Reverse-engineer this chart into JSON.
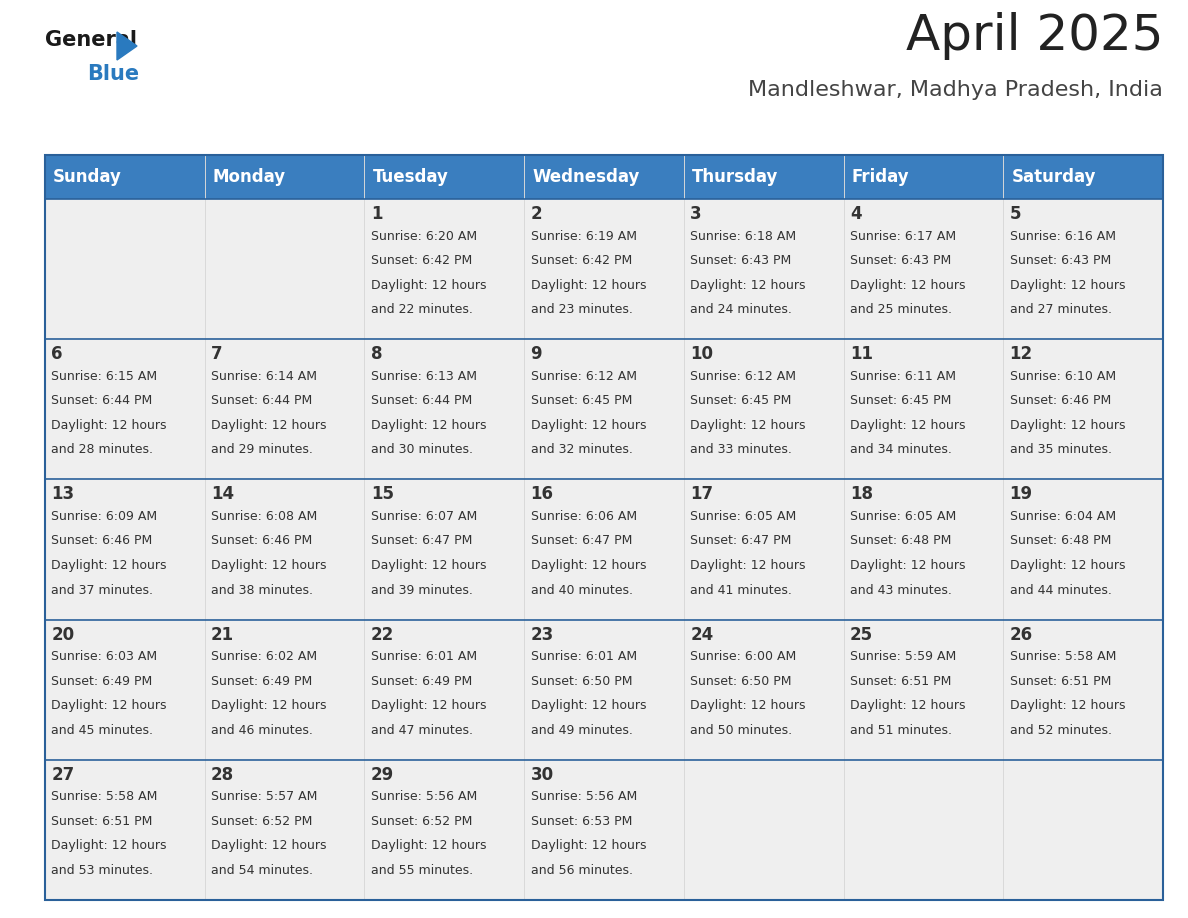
{
  "title": "April 2025",
  "subtitle": "Mandleshwar, Madhya Pradesh, India",
  "header_bg": "#3a7ebf",
  "header_text_color": "#ffffff",
  "cell_bg_light": "#efefef",
  "text_color": "#333333",
  "border_color": "#2a6099",
  "days_of_week": [
    "Sunday",
    "Monday",
    "Tuesday",
    "Wednesday",
    "Thursday",
    "Friday",
    "Saturday"
  ],
  "weeks": [
    [
      {
        "day": null,
        "info": null
      },
      {
        "day": null,
        "info": null
      },
      {
        "day": 1,
        "sunrise": "6:20 AM",
        "sunset": "6:42 PM",
        "daylight1": "Daylight: 12 hours",
        "daylight2": "and 22 minutes."
      },
      {
        "day": 2,
        "sunrise": "6:19 AM",
        "sunset": "6:42 PM",
        "daylight1": "Daylight: 12 hours",
        "daylight2": "and 23 minutes."
      },
      {
        "day": 3,
        "sunrise": "6:18 AM",
        "sunset": "6:43 PM",
        "daylight1": "Daylight: 12 hours",
        "daylight2": "and 24 minutes."
      },
      {
        "day": 4,
        "sunrise": "6:17 AM",
        "sunset": "6:43 PM",
        "daylight1": "Daylight: 12 hours",
        "daylight2": "and 25 minutes."
      },
      {
        "day": 5,
        "sunrise": "6:16 AM",
        "sunset": "6:43 PM",
        "daylight1": "Daylight: 12 hours",
        "daylight2": "and 27 minutes."
      }
    ],
    [
      {
        "day": 6,
        "sunrise": "6:15 AM",
        "sunset": "6:44 PM",
        "daylight1": "Daylight: 12 hours",
        "daylight2": "and 28 minutes."
      },
      {
        "day": 7,
        "sunrise": "6:14 AM",
        "sunset": "6:44 PM",
        "daylight1": "Daylight: 12 hours",
        "daylight2": "and 29 minutes."
      },
      {
        "day": 8,
        "sunrise": "6:13 AM",
        "sunset": "6:44 PM",
        "daylight1": "Daylight: 12 hours",
        "daylight2": "and 30 minutes."
      },
      {
        "day": 9,
        "sunrise": "6:12 AM",
        "sunset": "6:45 PM",
        "daylight1": "Daylight: 12 hours",
        "daylight2": "and 32 minutes."
      },
      {
        "day": 10,
        "sunrise": "6:12 AM",
        "sunset": "6:45 PM",
        "daylight1": "Daylight: 12 hours",
        "daylight2": "and 33 minutes."
      },
      {
        "day": 11,
        "sunrise": "6:11 AM",
        "sunset": "6:45 PM",
        "daylight1": "Daylight: 12 hours",
        "daylight2": "and 34 minutes."
      },
      {
        "day": 12,
        "sunrise": "6:10 AM",
        "sunset": "6:46 PM",
        "daylight1": "Daylight: 12 hours",
        "daylight2": "and 35 minutes."
      }
    ],
    [
      {
        "day": 13,
        "sunrise": "6:09 AM",
        "sunset": "6:46 PM",
        "daylight1": "Daylight: 12 hours",
        "daylight2": "and 37 minutes."
      },
      {
        "day": 14,
        "sunrise": "6:08 AM",
        "sunset": "6:46 PM",
        "daylight1": "Daylight: 12 hours",
        "daylight2": "and 38 minutes."
      },
      {
        "day": 15,
        "sunrise": "6:07 AM",
        "sunset": "6:47 PM",
        "daylight1": "Daylight: 12 hours",
        "daylight2": "and 39 minutes."
      },
      {
        "day": 16,
        "sunrise": "6:06 AM",
        "sunset": "6:47 PM",
        "daylight1": "Daylight: 12 hours",
        "daylight2": "and 40 minutes."
      },
      {
        "day": 17,
        "sunrise": "6:05 AM",
        "sunset": "6:47 PM",
        "daylight1": "Daylight: 12 hours",
        "daylight2": "and 41 minutes."
      },
      {
        "day": 18,
        "sunrise": "6:05 AM",
        "sunset": "6:48 PM",
        "daylight1": "Daylight: 12 hours",
        "daylight2": "and 43 minutes."
      },
      {
        "day": 19,
        "sunrise": "6:04 AM",
        "sunset": "6:48 PM",
        "daylight1": "Daylight: 12 hours",
        "daylight2": "and 44 minutes."
      }
    ],
    [
      {
        "day": 20,
        "sunrise": "6:03 AM",
        "sunset": "6:49 PM",
        "daylight1": "Daylight: 12 hours",
        "daylight2": "and 45 minutes."
      },
      {
        "day": 21,
        "sunrise": "6:02 AM",
        "sunset": "6:49 PM",
        "daylight1": "Daylight: 12 hours",
        "daylight2": "and 46 minutes."
      },
      {
        "day": 22,
        "sunrise": "6:01 AM",
        "sunset": "6:49 PM",
        "daylight1": "Daylight: 12 hours",
        "daylight2": "and 47 minutes."
      },
      {
        "day": 23,
        "sunrise": "6:01 AM",
        "sunset": "6:50 PM",
        "daylight1": "Daylight: 12 hours",
        "daylight2": "and 49 minutes."
      },
      {
        "day": 24,
        "sunrise": "6:00 AM",
        "sunset": "6:50 PM",
        "daylight1": "Daylight: 12 hours",
        "daylight2": "and 50 minutes."
      },
      {
        "day": 25,
        "sunrise": "5:59 AM",
        "sunset": "6:51 PM",
        "daylight1": "Daylight: 12 hours",
        "daylight2": "and 51 minutes."
      },
      {
        "day": 26,
        "sunrise": "5:58 AM",
        "sunset": "6:51 PM",
        "daylight1": "Daylight: 12 hours",
        "daylight2": "and 52 minutes."
      }
    ],
    [
      {
        "day": 27,
        "sunrise": "5:58 AM",
        "sunset": "6:51 PM",
        "daylight1": "Daylight: 12 hours",
        "daylight2": "and 53 minutes."
      },
      {
        "day": 28,
        "sunrise": "5:57 AM",
        "sunset": "6:52 PM",
        "daylight1": "Daylight: 12 hours",
        "daylight2": "and 54 minutes."
      },
      {
        "day": 29,
        "sunrise": "5:56 AM",
        "sunset": "6:52 PM",
        "daylight1": "Daylight: 12 hours",
        "daylight2": "and 55 minutes."
      },
      {
        "day": 30,
        "sunrise": "5:56 AM",
        "sunset": "6:53 PM",
        "daylight1": "Daylight: 12 hours",
        "daylight2": "and 56 minutes."
      },
      {
        "day": null,
        "info": null
      },
      {
        "day": null,
        "info": null
      },
      {
        "day": null,
        "info": null
      }
    ]
  ],
  "logo_text_general": "General",
  "logo_text_blue": "Blue",
  "title_fontsize": 36,
  "subtitle_fontsize": 16,
  "header_fontsize": 12,
  "day_num_fontsize": 12,
  "info_fontsize": 9
}
